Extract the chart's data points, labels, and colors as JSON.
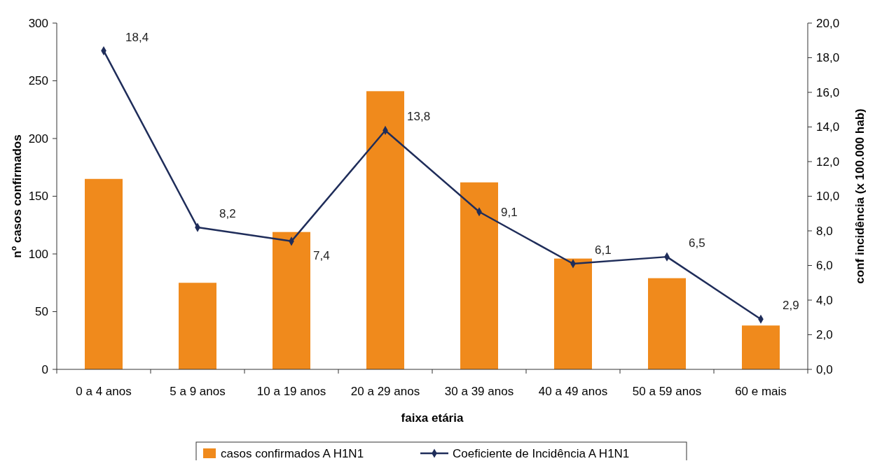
{
  "chart_data": {
    "type": "bar",
    "xlabel": "faixa etária",
    "ylabel": "nº casos confirmados",
    "y2label": "conf incidência (x 100.000 hab)",
    "categories": [
      "0 a 4 anos",
      "5 a 9 anos",
      "10 a 19 anos",
      "20 a 29 anos",
      "30 a 39 anos",
      "40 a 49 anos",
      "50 a 59 anos",
      "60 e mais"
    ],
    "series": [
      {
        "name": "casos confirmados A H1N1",
        "color": "#f08a1c",
        "values": [
          165,
          75,
          119,
          241,
          162,
          96,
          79,
          38
        ]
      },
      {
        "name": "Coeficiente de Incidência  A H1N1",
        "type": "line",
        "axis": "y2",
        "color": "#1f2d5a",
        "marker": "diamond",
        "values": [
          18.4,
          8.2,
          7.4,
          13.8,
          9.1,
          6.1,
          6.5,
          2.9
        ],
        "value_labels": [
          "18,4",
          "8,2",
          "7,4",
          "13,8",
          "9,1",
          "6,1",
          "6,5",
          "2,9"
        ]
      }
    ],
    "ylim": [
      0,
      300
    ],
    "yticks": [
      0,
      50,
      100,
      150,
      200,
      250,
      300
    ],
    "y2lim": [
      0,
      20
    ],
    "y2ticks": [
      {
        "value": 0,
        "label": "0,0"
      },
      {
        "value": 2,
        "label": "2,0"
      },
      {
        "value": 4,
        "label": "4,0"
      },
      {
        "value": 6,
        "label": "6,0"
      },
      {
        "value": 8,
        "label": "8,0"
      },
      {
        "value": 10,
        "label": "10,0"
      },
      {
        "value": 12,
        "label": "12,0"
      },
      {
        "value": 14,
        "label": "14,0"
      },
      {
        "value": 16,
        "label": "16,0"
      },
      {
        "value": 18,
        "label": "18,0"
      },
      {
        "value": 20,
        "label": "20,0"
      }
    ],
    "legend": "bottom",
    "grid": false
  }
}
